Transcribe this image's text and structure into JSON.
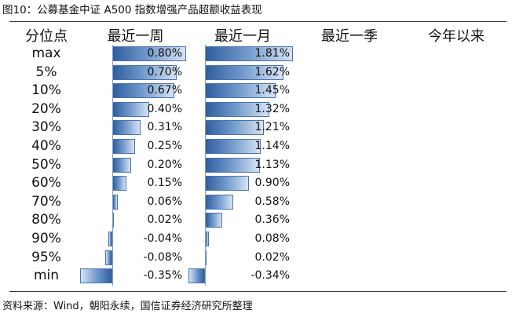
{
  "title": "图10：公募基金中证 A500 指数增强产品超额收益表现",
  "headers": [
    "分位点",
    "最近一周",
    "最近一月",
    "最近一季",
    "今年以来"
  ],
  "rows": [
    {
      "pct": "max",
      "week": 0.8,
      "month": 1.81,
      "week_label": "0.80%",
      "month_label": "1.81%"
    },
    {
      "pct": "5%",
      "week": 0.7,
      "month": 1.62,
      "week_label": "0.70%",
      "month_label": "1.62%"
    },
    {
      "pct": "10%",
      "week": 0.67,
      "month": 1.45,
      "week_label": "0.67%",
      "month_label": "1.45%"
    },
    {
      "pct": "20%",
      "week": 0.4,
      "month": 1.32,
      "week_label": "0.40%",
      "month_label": "1.32%"
    },
    {
      "pct": "30%",
      "week": 0.31,
      "month": 1.21,
      "week_label": "0.31%",
      "month_label": "1.21%"
    },
    {
      "pct": "40%",
      "week": 0.25,
      "month": 1.14,
      "week_label": "0.25%",
      "month_label": "1.14%"
    },
    {
      "pct": "50%",
      "week": 0.2,
      "month": 1.13,
      "week_label": "0.20%",
      "month_label": "1.13%"
    },
    {
      "pct": "60%",
      "week": 0.15,
      "month": 0.9,
      "week_label": "0.15%",
      "month_label": "0.90%"
    },
    {
      "pct": "70%",
      "week": 0.06,
      "month": 0.58,
      "week_label": "0.06%",
      "month_label": "0.58%"
    },
    {
      "pct": "80%",
      "week": 0.02,
      "month": 0.36,
      "week_label": "0.02%",
      "month_label": "0.36%"
    },
    {
      "pct": "90%",
      "week": -0.04,
      "month": 0.08,
      "week_label": "-0.04%",
      "month_label": "0.08%"
    },
    {
      "pct": "95%",
      "week": -0.08,
      "month": 0.02,
      "week_label": "-0.08%",
      "month_label": "0.02%"
    },
    {
      "pct": "min",
      "week": -0.35,
      "month": -0.34,
      "week_label": "-0.35%",
      "month_label": "-0.34%"
    }
  ],
  "bar_color": "#4a72ad",
  "source": "资料来源：Wind，朝阳永续，国信证券经济研究所整理"
}
